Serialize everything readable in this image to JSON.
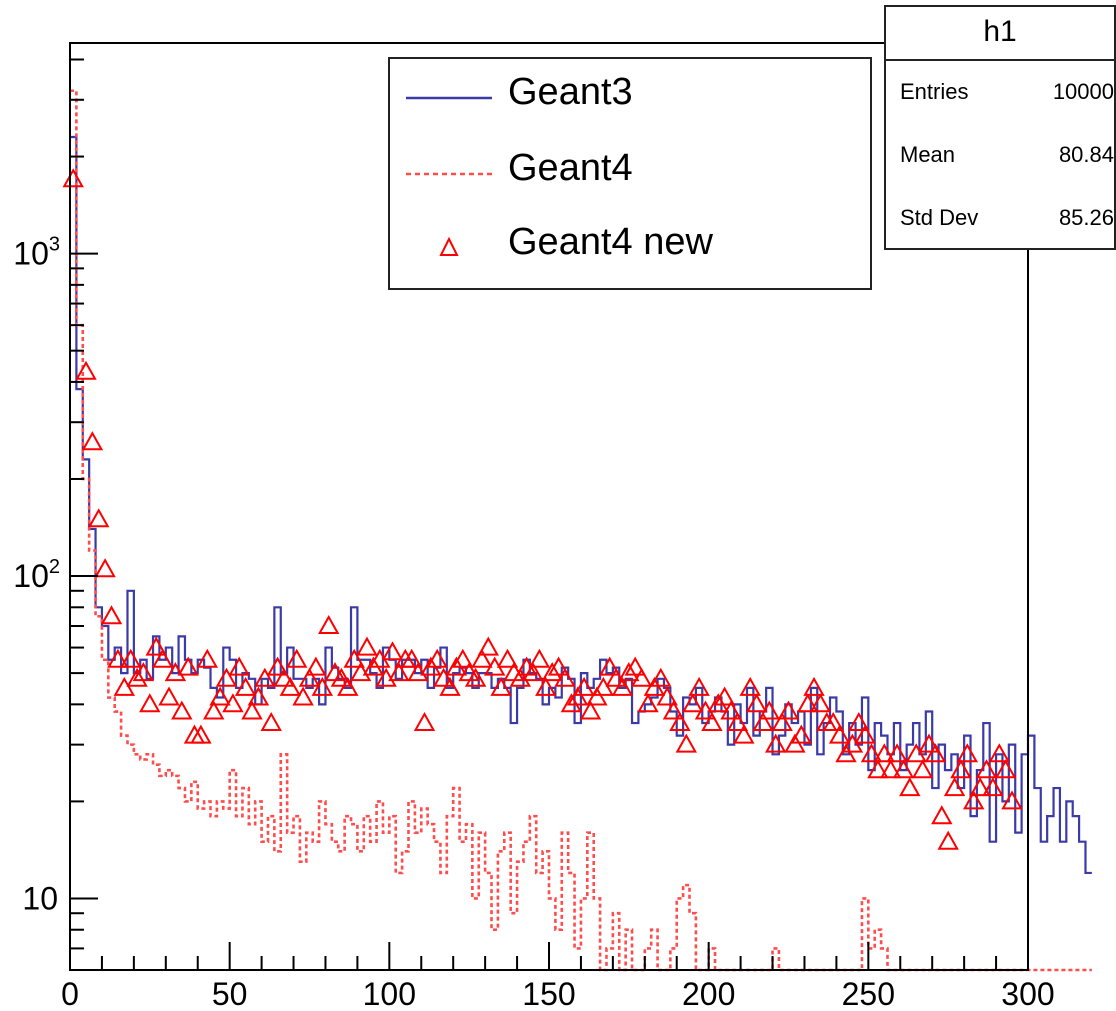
{
  "chart_data": {
    "type": "histogram",
    "title": "",
    "xlabel": "",
    "ylabel": "",
    "xlim": [
      0,
      300
    ],
    "ylim": [
      6,
      4500
    ],
    "log_y": true,
    "x_ticks": [
      0,
      50,
      100,
      150,
      200,
      250,
      300
    ],
    "y_ticks": [
      {
        "value": 10,
        "label": "10"
      },
      {
        "value": 100,
        "label": "10",
        "exp": "2"
      },
      {
        "value": 1000,
        "label": "10",
        "exp": "3"
      }
    ],
    "bin_width": 2,
    "series": [
      {
        "name": "Geant3",
        "style": "solid-step",
        "color": "#3a3aa8",
        "values": [
          2300,
          380,
          230,
          140,
          80,
          70,
          55,
          60,
          50,
          90,
          50,
          55,
          48,
          65,
          55,
          60,
          50,
          65,
          55,
          50,
          55,
          52,
          45,
          42,
          60,
          55,
          45,
          50,
          48,
          40,
          48,
          45,
          80,
          50,
          60,
          48,
          48,
          45,
          48,
          40,
          60,
          52,
          48,
          45,
          80,
          55,
          55,
          50,
          45,
          60,
          55,
          48,
          55,
          55,
          50,
          55,
          45,
          52,
          60,
          45,
          50,
          52,
          50,
          45,
          50,
          50,
          45,
          48,
          45,
          35,
          45,
          55,
          50,
          48,
          40,
          45,
          42,
          52,
          48,
          35,
          50,
          45,
          48,
          55,
          50,
          52,
          45,
          48,
          35,
          38,
          40,
          42,
          48,
          45,
          38,
          32,
          42,
          40,
          45,
          35,
          38,
          42,
          38,
          30,
          40,
          35,
          45,
          32,
          38,
          45,
          28,
          32,
          40,
          35,
          38,
          30,
          45,
          28,
          35,
          42,
          38,
          28,
          35,
          30,
          42,
          25,
          35,
          32,
          28,
          35,
          25,
          30,
          35,
          28,
          38,
          22,
          30,
          25,
          28,
          22,
          32,
          18,
          25,
          35,
          15,
          28,
          20,
          30,
          16,
          28,
          32,
          22,
          15,
          18,
          22,
          15,
          20,
          18,
          15,
          12
        ]
      },
      {
        "name": "Geant4",
        "style": "dashed-step",
        "color": "#ff4c4c",
        "values": [
          3200,
          600,
          200,
          120,
          75,
          55,
          42,
          38,
          32,
          30,
          28,
          27,
          28,
          26,
          24,
          25,
          24,
          22,
          20,
          23,
          19,
          20,
          18,
          20,
          19,
          25,
          18,
          22,
          17,
          20,
          15,
          18,
          14,
          28,
          16,
          18,
          13,
          16,
          15,
          20,
          17,
          15,
          14,
          18,
          17,
          14,
          18,
          15,
          20,
          16,
          18,
          12,
          14,
          20,
          16,
          19,
          17,
          15,
          12,
          18,
          22,
          15,
          17,
          10,
          16,
          12,
          8,
          14,
          16,
          9,
          13,
          15,
          18,
          12,
          14,
          10,
          8,
          16,
          12,
          7,
          10,
          16,
          10,
          6,
          7,
          9,
          6,
          8,
          6,
          6,
          7,
          8,
          6,
          6,
          7,
          10,
          11,
          9,
          6,
          6,
          7,
          6,
          6,
          6,
          6,
          6,
          6,
          6,
          6,
          6,
          7,
          6,
          6,
          6,
          6,
          6,
          6,
          6,
          6,
          6,
          6,
          6,
          6,
          6,
          10,
          7,
          8,
          7,
          6,
          6,
          6,
          6,
          6,
          6,
          6,
          6,
          6,
          6,
          6,
          6,
          6,
          6,
          6,
          6,
          6,
          6,
          6,
          6,
          6,
          6,
          6,
          6,
          6,
          6,
          6,
          6,
          6,
          6,
          6,
          6
        ]
      },
      {
        "name": "Geant4 new",
        "style": "open-triangle",
        "color": "#ff0000",
        "points": [
          [
            1,
            1700
          ],
          [
            5,
            430
          ],
          [
            7,
            260
          ],
          [
            9,
            150
          ],
          [
            11,
            105
          ],
          [
            13,
            75
          ],
          [
            15,
            55
          ],
          [
            17,
            45
          ],
          [
            19,
            55
          ],
          [
            21,
            48
          ],
          [
            23,
            50
          ],
          [
            25,
            40
          ],
          [
            27,
            60
          ],
          [
            29,
            55
          ],
          [
            31,
            42
          ],
          [
            33,
            50
          ],
          [
            35,
            38
          ],
          [
            37,
            52
          ],
          [
            39,
            32
          ],
          [
            41,
            32
          ],
          [
            43,
            55
          ],
          [
            45,
            38
          ],
          [
            47,
            42
          ],
          [
            49,
            48
          ],
          [
            51,
            40
          ],
          [
            53,
            52
          ],
          [
            55,
            45
          ],
          [
            57,
            38
          ],
          [
            59,
            42
          ],
          [
            61,
            48
          ],
          [
            63,
            35
          ],
          [
            65,
            52
          ],
          [
            67,
            48
          ],
          [
            69,
            45
          ],
          [
            71,
            55
          ],
          [
            73,
            42
          ],
          [
            75,
            48
          ],
          [
            77,
            52
          ],
          [
            79,
            45
          ],
          [
            81,
            70
          ],
          [
            83,
            50
          ],
          [
            85,
            48
          ],
          [
            87,
            45
          ],
          [
            89,
            55
          ],
          [
            91,
            50
          ],
          [
            93,
            60
          ],
          [
            95,
            52
          ],
          [
            97,
            55
          ],
          [
            99,
            48
          ],
          [
            101,
            58
          ],
          [
            103,
            50
          ],
          [
            105,
            55
          ],
          [
            107,
            55
          ],
          [
            109,
            50
          ],
          [
            111,
            35
          ],
          [
            113,
            52
          ],
          [
            115,
            55
          ],
          [
            117,
            48
          ],
          [
            119,
            45
          ],
          [
            121,
            52
          ],
          [
            123,
            55
          ],
          [
            125,
            50
          ],
          [
            127,
            48
          ],
          [
            129,
            55
          ],
          [
            131,
            60
          ],
          [
            133,
            52
          ],
          [
            135,
            45
          ],
          [
            137,
            55
          ],
          [
            139,
            50
          ],
          [
            141,
            48
          ],
          [
            143,
            52
          ],
          [
            145,
            50
          ],
          [
            147,
            55
          ],
          [
            149,
            45
          ],
          [
            151,
            50
          ],
          [
            153,
            52
          ],
          [
            155,
            48
          ],
          [
            157,
            40
          ],
          [
            159,
            42
          ],
          [
            161,
            45
          ],
          [
            163,
            38
          ],
          [
            165,
            42
          ],
          [
            167,
            45
          ],
          [
            169,
            52
          ],
          [
            171,
            48
          ],
          [
            173,
            45
          ],
          [
            175,
            50
          ],
          [
            177,
            52
          ],
          [
            179,
            48
          ],
          [
            181,
            40
          ],
          [
            183,
            45
          ],
          [
            185,
            48
          ],
          [
            187,
            42
          ],
          [
            189,
            38
          ],
          [
            191,
            35
          ],
          [
            193,
            30
          ],
          [
            195,
            40
          ],
          [
            197,
            45
          ],
          [
            199,
            38
          ],
          [
            201,
            35
          ],
          [
            203,
            40
          ],
          [
            205,
            42
          ],
          [
            207,
            38
          ],
          [
            209,
            35
          ],
          [
            211,
            32
          ],
          [
            213,
            45
          ],
          [
            215,
            40
          ],
          [
            217,
            35
          ],
          [
            219,
            38
          ],
          [
            221,
            30
          ],
          [
            223,
            35
          ],
          [
            225,
            38
          ],
          [
            227,
            30
          ],
          [
            229,
            32
          ],
          [
            231,
            40
          ],
          [
            233,
            45
          ],
          [
            235,
            40
          ],
          [
            237,
            35
          ],
          [
            239,
            35
          ],
          [
            241,
            32
          ],
          [
            243,
            28
          ],
          [
            245,
            30
          ],
          [
            247,
            35
          ],
          [
            249,
            32
          ],
          [
            251,
            28
          ],
          [
            253,
            25
          ],
          [
            255,
            28
          ],
          [
            257,
            25
          ],
          [
            259,
            28
          ],
          [
            261,
            25
          ],
          [
            263,
            22
          ],
          [
            265,
            28
          ],
          [
            267,
            25
          ],
          [
            269,
            30
          ],
          [
            271,
            28
          ],
          [
            273,
            18
          ],
          [
            275,
            15
          ],
          [
            277,
            22
          ],
          [
            279,
            25
          ],
          [
            281,
            28
          ],
          [
            283,
            20
          ],
          [
            285,
            22
          ],
          [
            287,
            25
          ],
          [
            289,
            22
          ],
          [
            291,
            28
          ],
          [
            293,
            25
          ],
          [
            295,
            20
          ]
        ]
      }
    ],
    "legend": {
      "position": "top-center",
      "entries": [
        "Geant3",
        "Geant4",
        "Geant4 new"
      ]
    },
    "stats": {
      "title": "h1",
      "rows": [
        {
          "key": "Entries",
          "value": "10000"
        },
        {
          "key": "Mean",
          "value": "80.84"
        },
        {
          "key": "Std Dev",
          "value": "85.26"
        }
      ]
    }
  }
}
